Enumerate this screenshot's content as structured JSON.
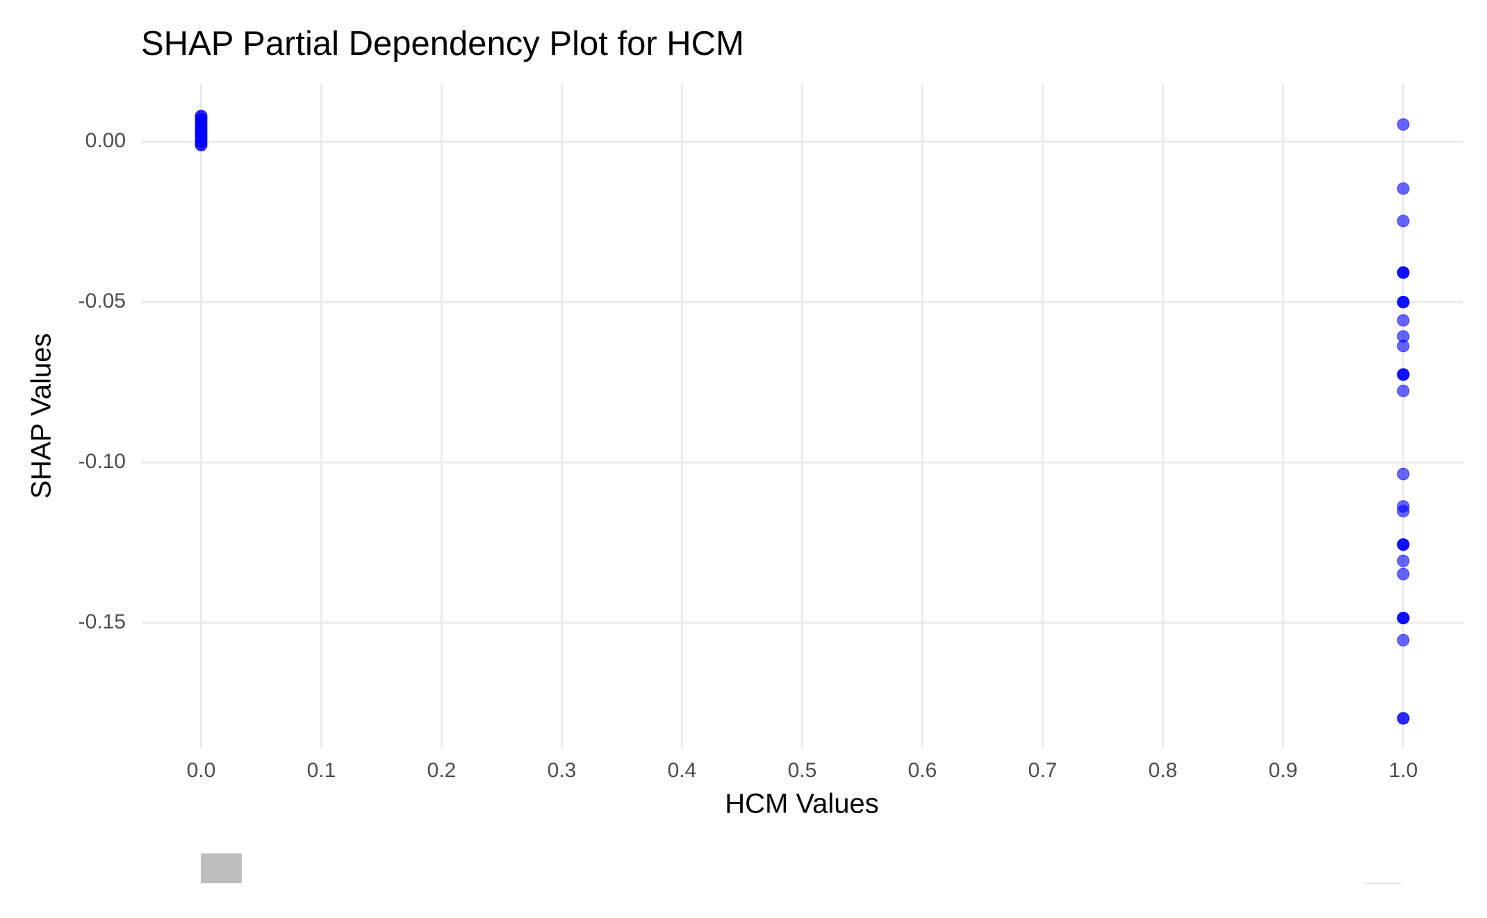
{
  "chart_data": {
    "type": "scatter",
    "title": "SHAP Partial Dependency Plot for HCM",
    "x_label": "HCM Values",
    "y_label": "SHAP Values",
    "color": "#0000ff",
    "opacity": 0.6,
    "x": [
      0,
      0,
      0,
      0,
      0,
      0,
      0,
      0,
      0,
      0,
      0,
      0,
      0,
      0,
      0,
      0,
      0,
      0,
      0,
      0,
      1,
      1,
      1,
      1,
      1,
      1,
      1,
      1,
      1,
      1,
      1,
      1,
      1,
      1,
      1,
      1,
      1,
      1,
      1,
      1,
      1,
      1,
      1,
      1,
      1,
      1,
      1,
      1,
      1,
      1
    ],
    "values": [
      0.008,
      0.008,
      0.007,
      0.007,
      0.006,
      0.006,
      0.005,
      0.005,
      0.004,
      0.004,
      0.003,
      0.003,
      0.002,
      0.002,
      0.001,
      0.001,
      0.0,
      0.0,
      -0.001,
      -0.001,
      0.0054,
      -0.0146,
      -0.0247,
      -0.0408,
      -0.0408,
      -0.0408,
      -0.05,
      -0.05,
      -0.05,
      -0.0557,
      -0.0607,
      -0.0637,
      -0.0726,
      -0.0726,
      -0.0726,
      -0.0777,
      -0.1036,
      -0.1137,
      -0.1152,
      -0.1256,
      -0.1256,
      -0.1256,
      -0.1307,
      -0.1348,
      -0.1485,
      -0.1485,
      -0.1485,
      -0.1554,
      -0.1798,
      -0.1798
    ],
    "xlim": [
      -0.05,
      1.05
    ],
    "ylim": [
      -0.189,
      0.018
    ],
    "xticks": [
      {
        "value": 0,
        "label": "0.0"
      },
      0.1,
      0.2,
      0.3,
      0.4,
      0.5,
      0.6,
      0.7,
      0.8,
      0.9,
      {
        "value": 1,
        "label": "1.0"
      }
    ],
    "yticks": [
      {
        "value": 0,
        "label": "0.00"
      },
      {
        "value": -0.05,
        "label": "-0.05"
      },
      {
        "value": -0.1,
        "label": "-0.10"
      },
      {
        "value": -0.15,
        "label": "-0.15"
      }
    ],
    "grid": true
  }
}
